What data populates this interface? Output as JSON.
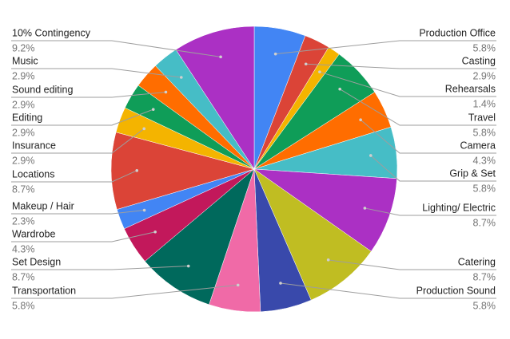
{
  "chart_data": {
    "type": "pie",
    "categories": [
      "Production Office",
      "Casting",
      "Rehearsals",
      "Travel",
      "Camera",
      "Grip & Set",
      "Lighting/ Electric",
      "Catering",
      "Production Sound",
      "Transportation",
      "Set Design",
      "Wardrobe",
      "Makeup / Hair",
      "Locations",
      "Insurance",
      "Editing",
      "Sound editing",
      "Music",
      "10% Contingency"
    ],
    "values": [
      5.8,
      2.9,
      1.4,
      5.8,
      4.3,
      5.8,
      8.7,
      8.7,
      5.8,
      5.8,
      8.7,
      4.3,
      2.3,
      8.7,
      2.9,
      2.9,
      2.9,
      2.9,
      9.2
    ],
    "value_labels": [
      "5.8%",
      "2.9%",
      "1.4%",
      "5.8%",
      "4.3%",
      "5.8%",
      "8.7%",
      "8.7%",
      "5.8%",
      "5.8%",
      "8.7%",
      "4.3%",
      "2.3%",
      "8.7%",
      "2.9%",
      "2.9%",
      "2.9%",
      "2.9%",
      "9.2%"
    ],
    "colors": [
      "#4285f4",
      "#db4437",
      "#f4b400",
      "#0f9d58",
      "#ff6d00",
      "#46bdc6",
      "#ab30c4",
      "#c0bd22",
      "#3949ab",
      "#f06aa7",
      "#00695c",
      "#c2185b",
      "#4285f4",
      "#db4437",
      "#f4b400",
      "#0f9d58",
      "#ff6d00",
      "#46bdc6",
      "#ab30c4"
    ]
  }
}
